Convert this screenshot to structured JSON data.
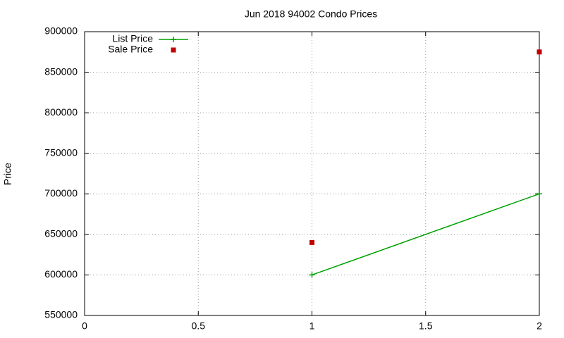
{
  "chart_data": {
    "type": "line",
    "title": "Jun 2018 94002 Condo Prices",
    "y_label": "Price",
    "x": [
      1,
      2
    ],
    "series": [
      {
        "name": "List Price",
        "color": "#00a000",
        "style": "linespoints",
        "marker": "plus",
        "values": [
          600000,
          700000
        ]
      },
      {
        "name": "Sale Price",
        "color": "#c00000",
        "style": "points",
        "marker": "square",
        "values": [
          640000,
          875000
        ]
      }
    ],
    "xlim": [
      0,
      2
    ],
    "xticks": [
      0,
      0.5,
      1,
      1.5,
      2
    ],
    "ylim": [
      550000,
      900000
    ],
    "yticks": [
      550000,
      600000,
      650000,
      700000,
      750000,
      800000,
      850000,
      900000
    ],
    "grid": true,
    "legend": "top-left"
  }
}
